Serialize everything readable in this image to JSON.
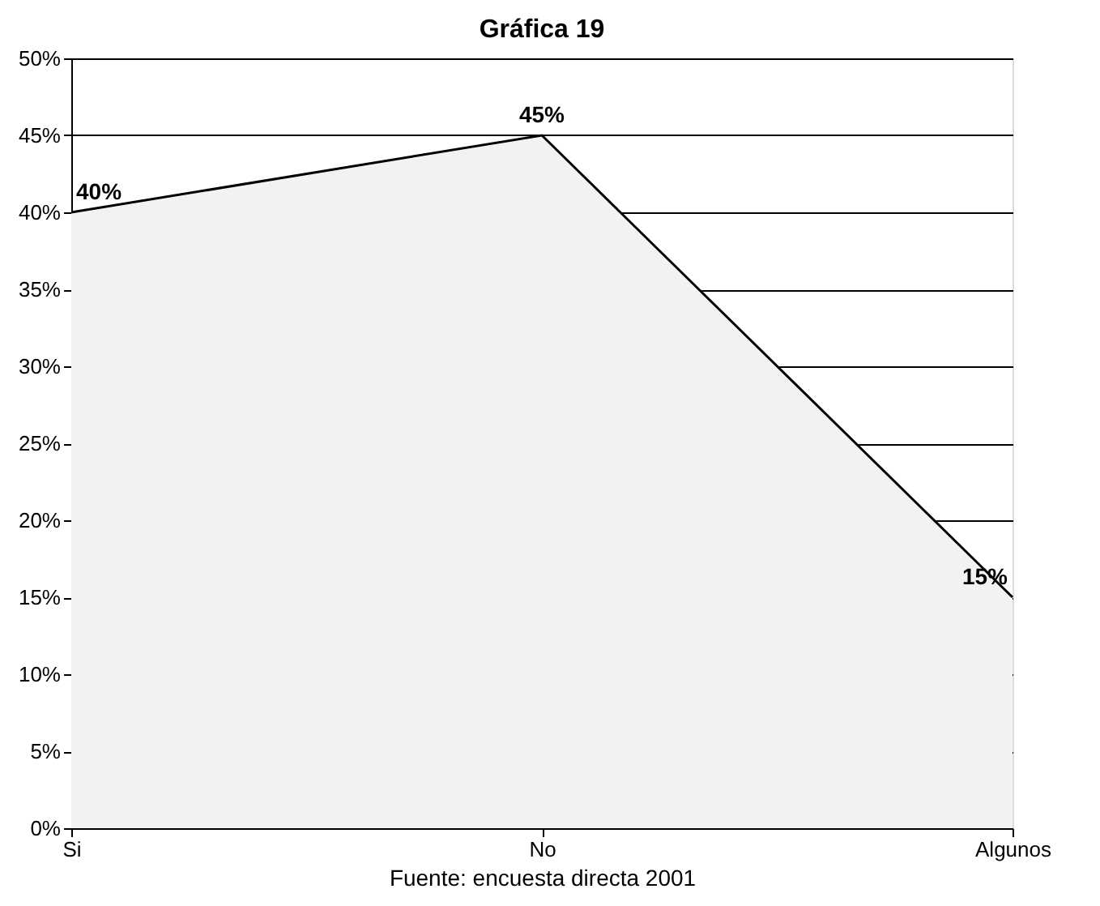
{
  "chart_data": {
    "type": "area",
    "title": "Gráfica 19",
    "categories": [
      "Si",
      "No",
      "Algunos"
    ],
    "series": [
      {
        "color": "#f2f2f2",
        "values": [
          40,
          45,
          15
        ]
      }
    ],
    "ylim": [
      0,
      50
    ],
    "yticks": [
      {
        "value": 0,
        "label": "0%"
      },
      {
        "value": 5,
        "label": "5%"
      },
      {
        "value": 10,
        "label": "10%"
      },
      {
        "value": 15,
        "label": "15%"
      },
      {
        "value": 20,
        "label": "20%"
      },
      {
        "value": 25,
        "label": "25%"
      },
      {
        "value": 30,
        "label": "30%"
      },
      {
        "value": 35,
        "label": "35%"
      },
      {
        "value": 40,
        "label": "40%"
      },
      {
        "value": 45,
        "label": "45%"
      },
      {
        "value": 50,
        "label": "50%"
      }
    ],
    "grid": "y",
    "value_labels": [
      "40%",
      "45%",
      "15%"
    ],
    "annotations": [
      "Fuente: encuesta directa 2001"
    ]
  }
}
